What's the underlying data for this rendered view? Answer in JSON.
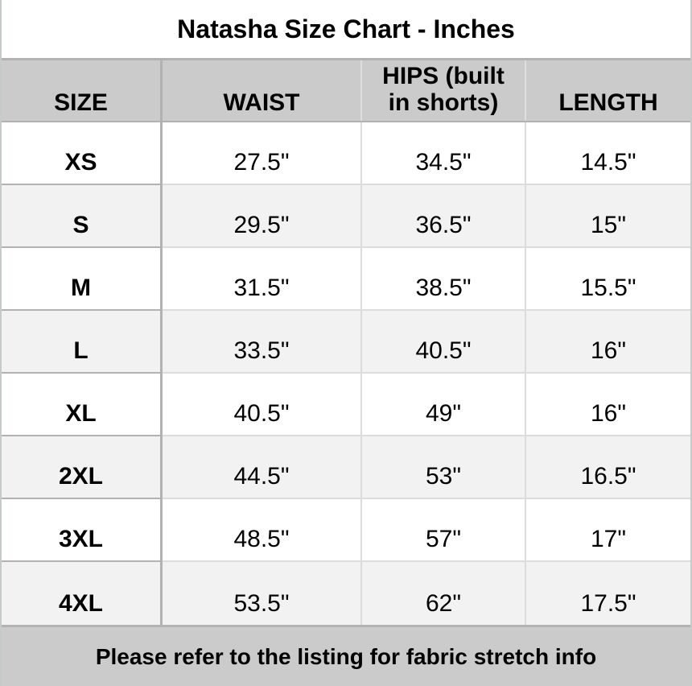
{
  "chart_data": {
    "type": "table",
    "title": "Natasha Size Chart - Inches",
    "columns": [
      "SIZE",
      "WAIST",
      "HIPS (built in shorts)",
      "LENGTH"
    ],
    "rows": [
      [
        "XS",
        "27.5\"",
        "34.5\"",
        "14.5\""
      ],
      [
        "S",
        "29.5\"",
        "36.5\"",
        "15\""
      ],
      [
        "M",
        "31.5\"",
        "38.5\"",
        "15.5\""
      ],
      [
        "L",
        "33.5\"",
        "40.5\"",
        "16\""
      ],
      [
        "XL",
        "40.5\"",
        "49\"",
        "16\""
      ],
      [
        "2XL",
        "44.5\"",
        "53\"",
        "16.5\""
      ],
      [
        "3XL",
        "48.5\"",
        "57\"",
        "17\""
      ],
      [
        "4XL",
        "53.5\"",
        "62\"",
        "17.5\""
      ]
    ],
    "footnote": "Please refer to the listing for fabric stretch info",
    "units": "Inches",
    "layout": {
      "grid": true,
      "header_background": true,
      "alternating_rows": true
    }
  },
  "colors": {
    "header_background": "#cbcbcb",
    "footer_background": "#cbcbcb",
    "alt_row_background": "#f2f2f2",
    "grid_line_dark": "#b2b2b2",
    "grid_line_light": "#dcdcdc",
    "text": "#000000"
  }
}
